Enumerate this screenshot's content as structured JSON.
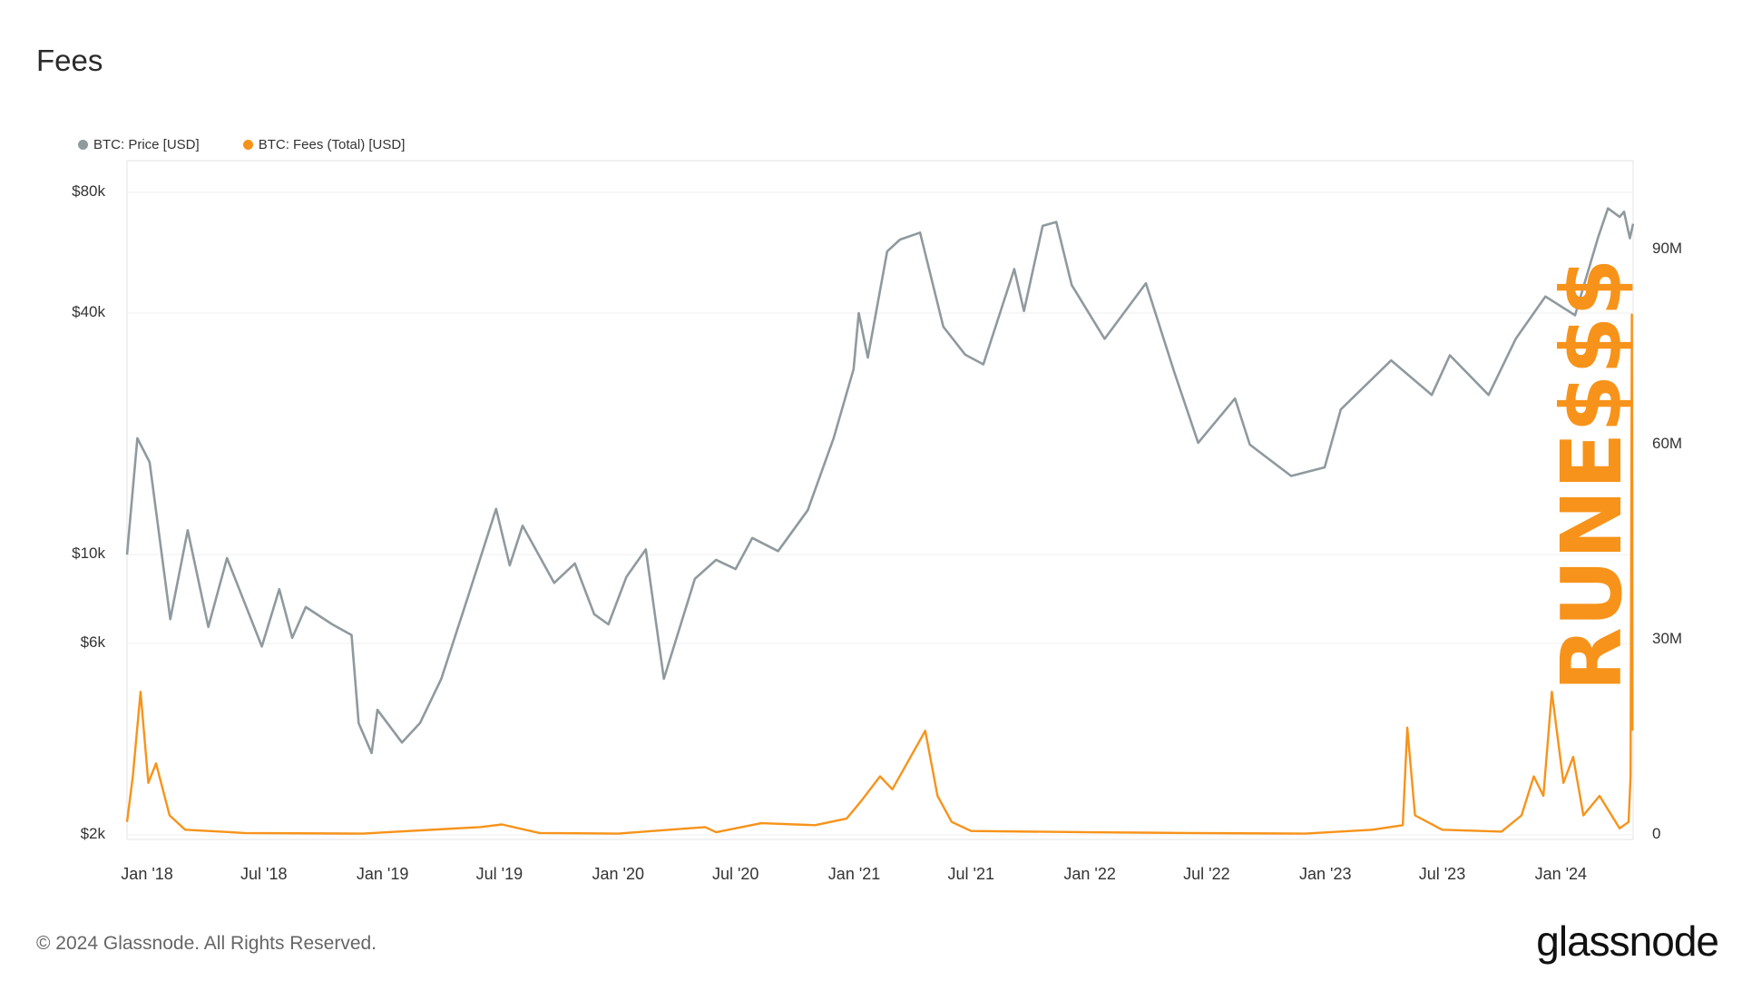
{
  "title": "Fees",
  "legend": [
    {
      "label": "BTC: Price [USD]",
      "color": "#8f9a9e"
    },
    {
      "label": "BTC: Fees (Total) [USD]",
      "color": "#f7931a"
    }
  ],
  "footer": "© 2024 Glassnode. All Rights Reserved.",
  "brand": "glassnode",
  "annotation": "RUNE$$$",
  "chart_data": {
    "type": "line",
    "title": "Fees",
    "x_ticks": [
      "Jan '18",
      "Jul '18",
      "Jan '19",
      "Jul '19",
      "Jan '20",
      "Jul '20",
      "Jan '21",
      "Jul '21",
      "Jan '22",
      "Jul '22",
      "Jan '23",
      "Jul '23",
      "Jan '24"
    ],
    "y_left": {
      "scale": "log",
      "ticks": [
        "$80k",
        "$40k",
        "$10k",
        "$6k",
        "$2k"
      ],
      "tick_values": [
        80000,
        40000,
        10000,
        6000,
        2000
      ]
    },
    "y_right": {
      "scale": "linear",
      "ticks": [
        "90M",
        "60M",
        "30M",
        "0"
      ],
      "tick_values": [
        90000000,
        60000000,
        30000000,
        0
      ]
    },
    "x_range": [
      "2017-12-01",
      "2024-04-22"
    ],
    "grid": true,
    "legend_position": "top-left",
    "series": [
      {
        "name": "BTC: Price [USD]",
        "axis": "left",
        "points": [
          [
            "2017-12-01",
            10000
          ],
          [
            "2017-12-17",
            19500
          ],
          [
            "2018-01-05",
            17000
          ],
          [
            "2018-02-06",
            6900
          ],
          [
            "2018-03-05",
            11500
          ],
          [
            "2018-04-06",
            6600
          ],
          [
            "2018-05-05",
            9800
          ],
          [
            "2018-06-28",
            5900
          ],
          [
            "2018-07-25",
            8200
          ],
          [
            "2018-08-14",
            6200
          ],
          [
            "2018-09-04",
            7400
          ],
          [
            "2018-10-15",
            6700
          ],
          [
            "2018-11-14",
            6300
          ],
          [
            "2018-11-25",
            3800
          ],
          [
            "2018-12-15",
            3200
          ],
          [
            "2018-12-24",
            4100
          ],
          [
            "2019-01-31",
            3400
          ],
          [
            "2019-02-28",
            3800
          ],
          [
            "2019-04-02",
            4900
          ],
          [
            "2019-05-14",
            7900
          ],
          [
            "2019-06-26",
            13000
          ],
          [
            "2019-07-17",
            9400
          ],
          [
            "2019-08-06",
            11800
          ],
          [
            "2019-09-24",
            8500
          ],
          [
            "2019-10-26",
            9500
          ],
          [
            "2019-11-25",
            7100
          ],
          [
            "2019-12-17",
            6700
          ],
          [
            "2020-01-14",
            8800
          ],
          [
            "2020-02-13",
            10300
          ],
          [
            "2020-03-12",
            4900
          ],
          [
            "2020-04-29",
            8700
          ],
          [
            "2020-06-01",
            9700
          ],
          [
            "2020-07-01",
            9200
          ],
          [
            "2020-07-27",
            11000
          ],
          [
            "2020-09-05",
            10200
          ],
          [
            "2020-10-21",
            12900
          ],
          [
            "2020-11-30",
            19500
          ],
          [
            "2020-12-31",
            29000
          ],
          [
            "2021-01-08",
            40000
          ],
          [
            "2021-01-22",
            31000
          ],
          [
            "2021-02-21",
            57000
          ],
          [
            "2021-03-13",
            61000
          ],
          [
            "2021-04-13",
            63500
          ],
          [
            "2021-05-19",
            37000
          ],
          [
            "2021-06-22",
            31500
          ],
          [
            "2021-07-20",
            29800
          ],
          [
            "2021-09-06",
            51500
          ],
          [
            "2021-09-21",
            40500
          ],
          [
            "2021-10-20",
            66000
          ],
          [
            "2021-11-10",
            67500
          ],
          [
            "2021-12-04",
            47000
          ],
          [
            "2022-01-24",
            34500
          ],
          [
            "2022-03-29",
            47500
          ],
          [
            "2022-05-12",
            28500
          ],
          [
            "2022-06-18",
            19000
          ],
          [
            "2022-08-14",
            24500
          ],
          [
            "2022-09-06",
            18800
          ],
          [
            "2022-11-09",
            15700
          ],
          [
            "2022-12-31",
            16500
          ],
          [
            "2023-01-25",
            23000
          ],
          [
            "2023-04-13",
            30500
          ],
          [
            "2023-06-15",
            25000
          ],
          [
            "2023-07-13",
            31400
          ],
          [
            "2023-09-11",
            25000
          ],
          [
            "2023-10-23",
            34500
          ],
          [
            "2023-12-08",
            44000
          ],
          [
            "2024-01-23",
            39500
          ],
          [
            "2024-02-28",
            62000
          ],
          [
            "2024-03-14",
            73000
          ],
          [
            "2024-04-01",
            69500
          ],
          [
            "2024-04-08",
            71600
          ],
          [
            "2024-04-17",
            61500
          ],
          [
            "2024-04-22",
            66800
          ]
        ]
      },
      {
        "name": "BTC: Fees (Total) [USD]",
        "axis": "right",
        "points": [
          [
            "2017-12-01",
            2000000
          ],
          [
            "2017-12-10",
            9000000
          ],
          [
            "2017-12-22",
            22000000
          ],
          [
            "2018-01-03",
            8000000
          ],
          [
            "2018-01-15",
            11000000
          ],
          [
            "2018-02-05",
            3000000
          ],
          [
            "2018-03-01",
            800000
          ],
          [
            "2018-06-01",
            300000
          ],
          [
            "2018-12-01",
            200000
          ],
          [
            "2019-06-01",
            1200000
          ],
          [
            "2019-07-05",
            1600000
          ],
          [
            "2019-09-01",
            300000
          ],
          [
            "2020-01-01",
            200000
          ],
          [
            "2020-05-15",
            1200000
          ],
          [
            "2020-06-01",
            400000
          ],
          [
            "2020-08-10",
            1800000
          ],
          [
            "2020-11-01",
            1500000
          ],
          [
            "2020-12-20",
            2500000
          ],
          [
            "2021-01-10",
            5000000
          ],
          [
            "2021-02-10",
            9000000
          ],
          [
            "2021-03-01",
            7000000
          ],
          [
            "2021-04-21",
            16000000
          ],
          [
            "2021-05-10",
            6000000
          ],
          [
            "2021-06-01",
            2000000
          ],
          [
            "2021-07-01",
            600000
          ],
          [
            "2022-01-01",
            400000
          ],
          [
            "2022-06-01",
            300000
          ],
          [
            "2022-12-01",
            200000
          ],
          [
            "2023-03-15",
            800000
          ],
          [
            "2023-05-01",
            1500000
          ],
          [
            "2023-05-08",
            16500000
          ],
          [
            "2023-05-20",
            3000000
          ],
          [
            "2023-07-01",
            800000
          ],
          [
            "2023-10-01",
            500000
          ],
          [
            "2023-11-01",
            3000000
          ],
          [
            "2023-11-20",
            9000000
          ],
          [
            "2023-12-05",
            6000000
          ],
          [
            "2023-12-18",
            22000000
          ],
          [
            "2024-01-05",
            8000000
          ],
          [
            "2024-01-20",
            12000000
          ],
          [
            "2024-02-05",
            3000000
          ],
          [
            "2024-03-01",
            6000000
          ],
          [
            "2024-04-01",
            1000000
          ],
          [
            "2024-04-15",
            2000000
          ],
          [
            "2024-04-18",
            9000000
          ],
          [
            "2024-04-20",
            80000000
          ],
          [
            "2024-04-21",
            16000000
          ]
        ]
      }
    ]
  }
}
